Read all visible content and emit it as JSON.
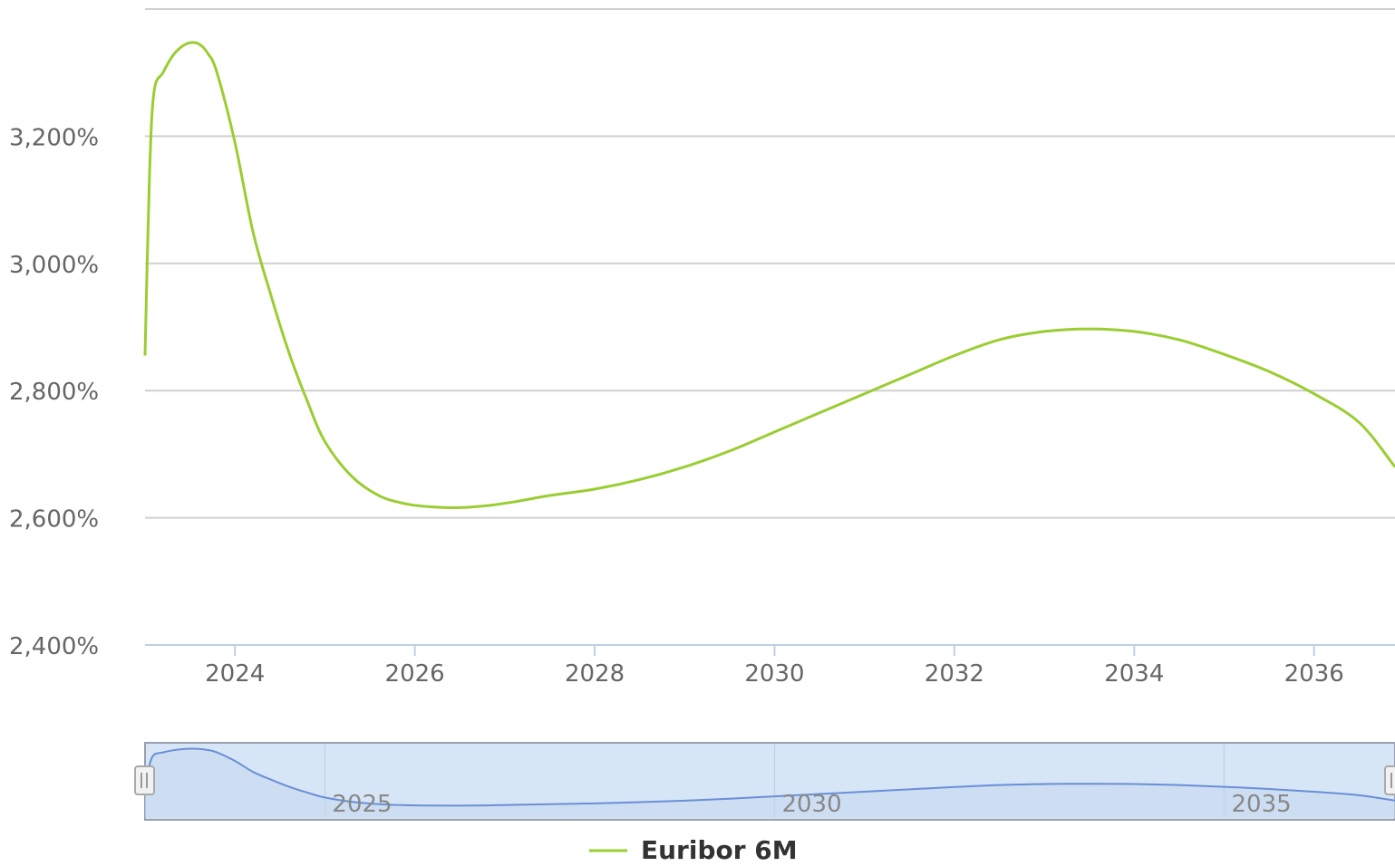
{
  "chart_data": {
    "type": "line",
    "series": [
      {
        "name": "Euribor 6M",
        "color": "#9ACD32",
        "x": [
          2023.0,
          2023.05,
          2023.1,
          2023.2,
          2023.3,
          2023.4,
          2023.5,
          2023.6,
          2023.7,
          2023.8,
          2024.0,
          2024.2,
          2024.4,
          2024.6,
          2024.8,
          2025.0,
          2025.3,
          2025.6,
          2025.9,
          2026.2,
          2026.5,
          2026.8,
          2027.1,
          2027.5,
          2028.0,
          2028.5,
          2029.0,
          2029.5,
          2030.0,
          2030.5,
          2031.0,
          2031.5,
          2032.0,
          2032.5,
          2033.0,
          2033.5,
          2034.0,
          2034.5,
          2035.0,
          2035.5,
          2036.0,
          2036.5,
          2036.9
        ],
        "values": [
          2.855,
          3.14,
          3.27,
          3.3,
          3.325,
          3.34,
          3.347,
          3.345,
          3.33,
          3.3,
          3.19,
          3.05,
          2.95,
          2.86,
          2.785,
          2.72,
          2.665,
          2.635,
          2.622,
          2.617,
          2.616,
          2.619,
          2.625,
          2.635,
          2.645,
          2.66,
          2.68,
          2.705,
          2.735,
          2.765,
          2.795,
          2.825,
          2.855,
          2.88,
          2.893,
          2.897,
          2.893,
          2.88,
          2.857,
          2.83,
          2.795,
          2.75,
          2.68
        ]
      }
    ],
    "yticks": [
      "2,400%",
      "2,600%",
      "2,800%",
      "3,000%",
      "3,200%"
    ],
    "ytick_values": [
      2.4,
      2.6,
      2.8,
      3.0,
      3.2
    ],
    "xticks": [
      "2024",
      "2026",
      "2028",
      "2030",
      "2032",
      "2034",
      "2036"
    ],
    "xtick_values": [
      2024,
      2026,
      2028,
      2030,
      2032,
      2034,
      2036
    ],
    "xlim": [
      2023.0,
      2036.9
    ],
    "ylim": [
      2.4,
      3.4
    ],
    "grid": true,
    "legend_position": "bottom-center",
    "navigator": {
      "ticks": [
        "2025",
        "2030",
        "2035"
      ],
      "tick_values": [
        2025,
        2030,
        2035
      ],
      "line_color": "#6A8FD6",
      "mask_color": "#D7E6F7"
    }
  }
}
